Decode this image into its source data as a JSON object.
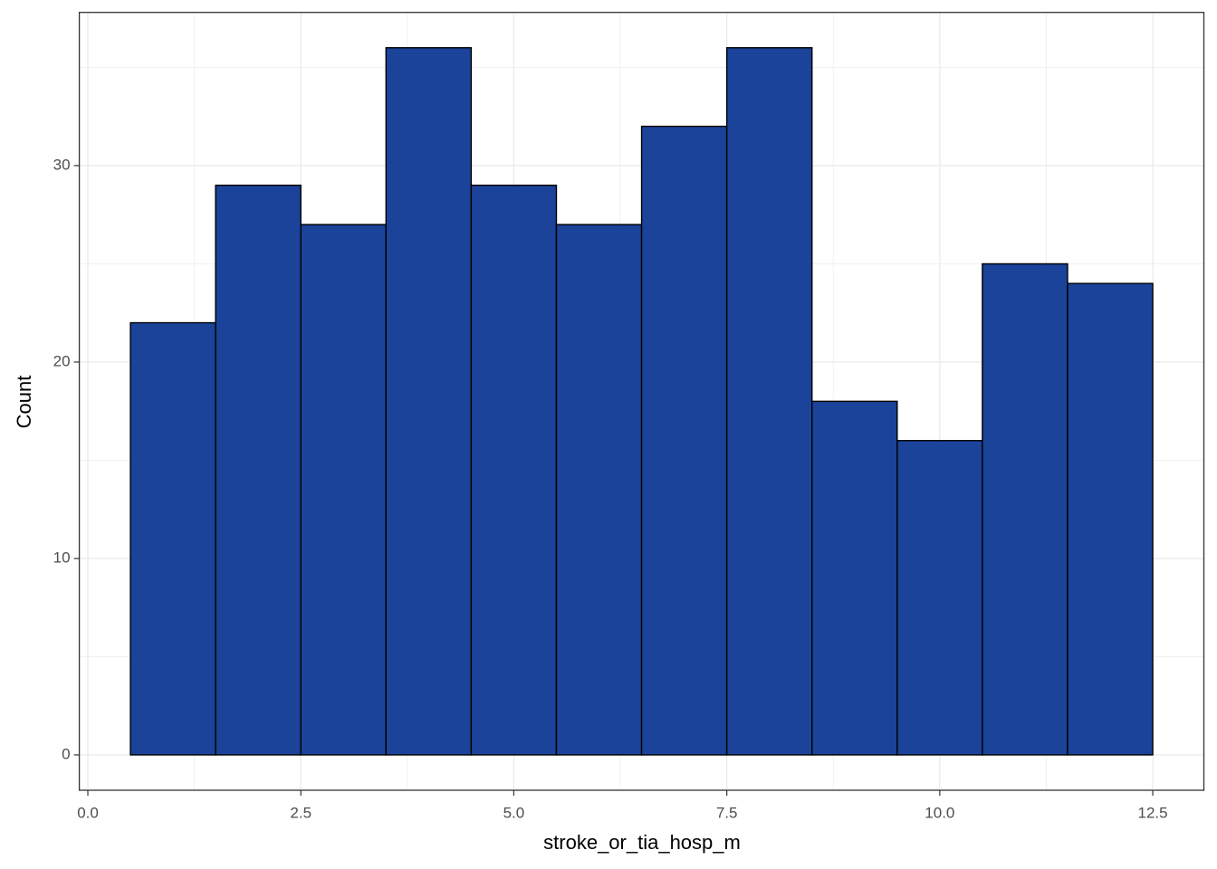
{
  "chart_data": {
    "type": "histogram",
    "x_label": "stroke_or_tia_hosp_m",
    "y_label": "Count",
    "bins": [
      0.5,
      1.5,
      2.5,
      3.5,
      4.5,
      5.5,
      6.5,
      7.5,
      8.5,
      9.5,
      10.5,
      11.5,
      12.5
    ],
    "values": [
      22,
      29,
      27,
      36,
      29,
      27,
      32,
      36,
      18,
      16,
      25,
      24
    ],
    "color": "#1a4399",
    "edge_color": "#000000",
    "xlim": [
      -0.1,
      13.1
    ],
    "ylim": [
      -1.8,
      37.8
    ],
    "xticks": [
      {
        "value": 0,
        "label": "0.0"
      },
      2.5,
      {
        "value": 5,
        "label": "5.0"
      },
      7.5,
      {
        "value": 10,
        "label": "10.0"
      },
      12.5
    ],
    "yticks": [
      0,
      10,
      20,
      30
    ],
    "grid": true
  }
}
